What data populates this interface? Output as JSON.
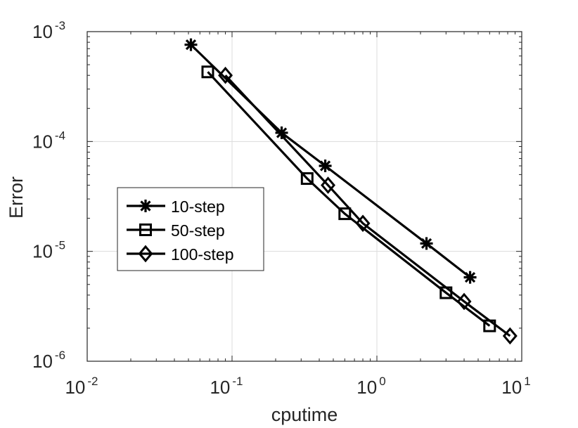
{
  "chart_data": {
    "type": "line",
    "xscale": "log",
    "yscale": "log",
    "xlim": [
      0.01,
      10
    ],
    "ylim": [
      1e-06,
      0.001
    ],
    "xlabel": "cputime",
    "ylabel": "Error",
    "grid": true,
    "legend_position": "center-left",
    "x_ticks": [
      {
        "base": "10",
        "exp": "-2",
        "value": 0.01
      },
      {
        "base": "10",
        "exp": "-1",
        "value": 0.1
      },
      {
        "base": "10",
        "exp": "0",
        "value": 1
      },
      {
        "base": "10",
        "exp": "1",
        "value": 10
      }
    ],
    "y_ticks": [
      {
        "base": "10",
        "exp": "-6",
        "value": 1e-06
      },
      {
        "base": "10",
        "exp": "-5",
        "value": 1e-05
      },
      {
        "base": "10",
        "exp": "-4",
        "value": 0.0001
      },
      {
        "base": "10",
        "exp": "-3",
        "value": 0.001
      }
    ],
    "series": [
      {
        "name": "10-step",
        "marker": "asterisk",
        "color": "#000000",
        "points": [
          {
            "x": 0.052,
            "y": 0.00076
          },
          {
            "x": 0.22,
            "y": 0.00012
          },
          {
            "x": 0.44,
            "y": 6e-05
          },
          {
            "x": 2.2,
            "y": 1.18e-05
          },
          {
            "x": 4.4,
            "y": 5.8e-06
          }
        ]
      },
      {
        "name": "50-step",
        "marker": "square",
        "color": "#000000",
        "points": [
          {
            "x": 0.068,
            "y": 0.00043
          },
          {
            "x": 0.33,
            "y": 4.6e-05
          },
          {
            "x": 0.6,
            "y": 2.2e-05
          },
          {
            "x": 3.0,
            "y": 4.2e-06
          },
          {
            "x": 6.0,
            "y": 2.1e-06
          }
        ]
      },
      {
        "name": "100-step",
        "marker": "diamond",
        "color": "#000000",
        "points": [
          {
            "x": 0.09,
            "y": 0.0004
          },
          {
            "x": 0.46,
            "y": 4e-05
          },
          {
            "x": 0.8,
            "y": 1.8e-05
          },
          {
            "x": 4.0,
            "y": 3.5e-06
          },
          {
            "x": 8.3,
            "y": 1.7e-06
          }
        ]
      }
    ]
  }
}
